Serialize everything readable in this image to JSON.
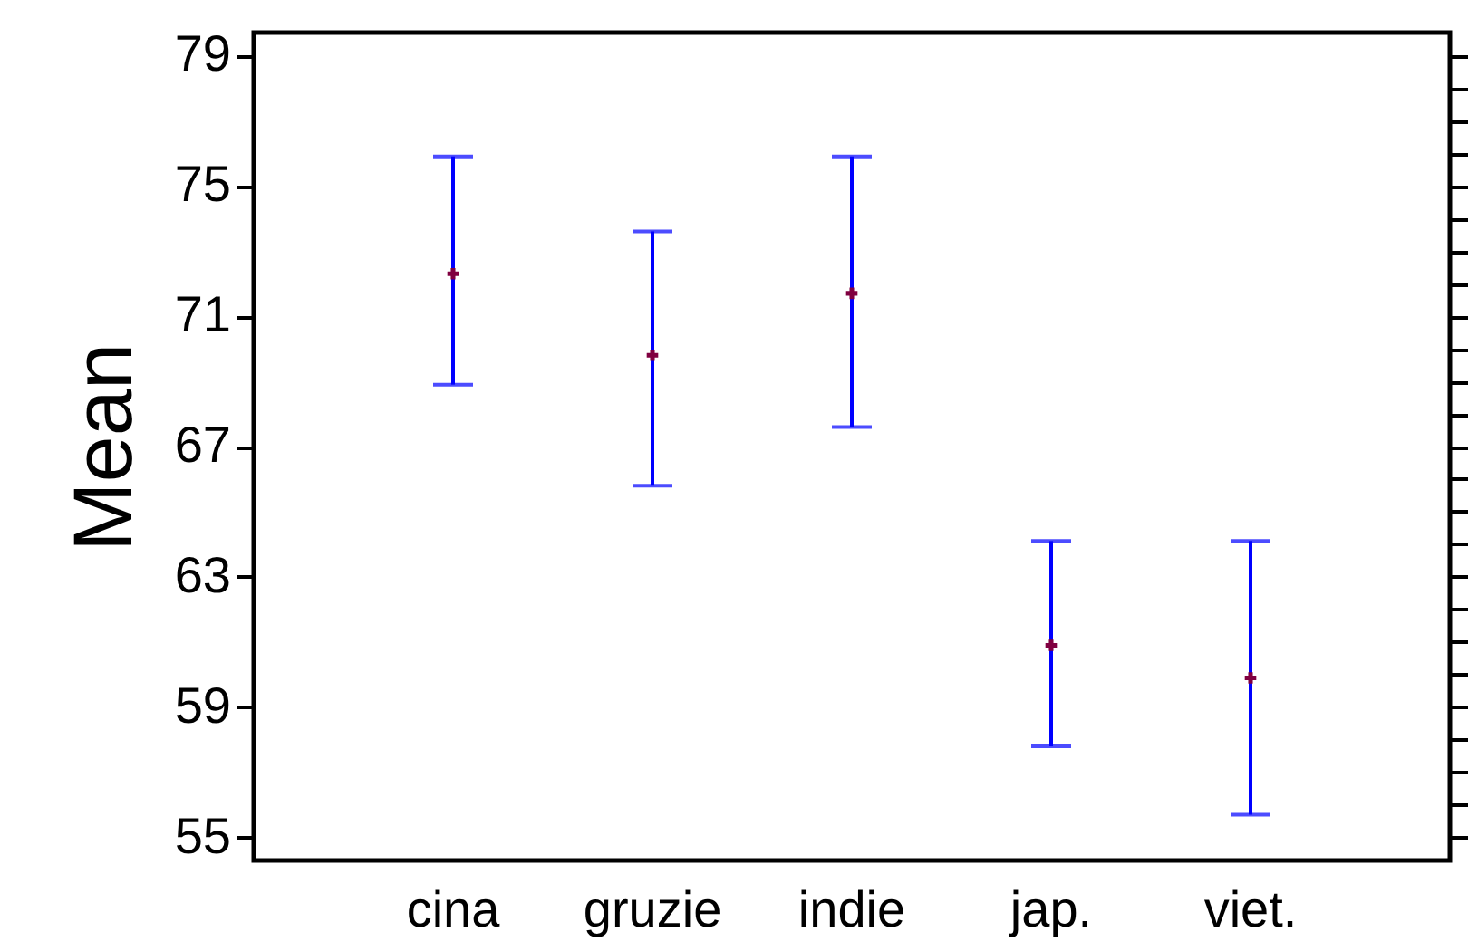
{
  "chart_data": {
    "type": "scatter",
    "ylabel": "Mean",
    "categories": [
      "cina",
      "gruzie",
      "indie",
      "jap.",
      "viet."
    ],
    "series": [
      {
        "color": "#800040",
        "values": [
          72.3,
          69.8,
          71.7,
          60.9,
          59.9
        ],
        "errors": [
          [
            68.9,
            75.9
          ],
          [
            65.8,
            73.6
          ],
          [
            67.6,
            75.9
          ],
          [
            57.8,
            64.1
          ],
          [
            55.7,
            64.1
          ]
        ]
      }
    ],
    "marker": "cross",
    "ylim": [
      54.3,
      79.7
    ],
    "yticks": [
      55,
      {
        "value": 56,
        "label": null
      },
      {
        "value": 57,
        "label": null
      },
      {
        "value": 58,
        "label": null
      },
      59,
      {
        "value": 60,
        "label": null
      },
      {
        "value": 61,
        "label": null
      },
      {
        "value": 62,
        "label": null
      },
      63,
      {
        "value": 64,
        "label": null
      },
      {
        "value": 65,
        "label": null
      },
      {
        "value": 66,
        "label": null
      },
      67,
      {
        "value": 68,
        "label": null
      },
      {
        "value": 69,
        "label": null
      },
      {
        "value": 70,
        "label": null
      },
      71,
      {
        "value": 72,
        "label": null
      },
      {
        "value": 73,
        "label": null
      },
      {
        "value": 74,
        "label": null
      },
      75,
      {
        "value": 76,
        "label": null
      },
      {
        "value": 77,
        "label": null
      },
      {
        "value": 78,
        "label": null
      },
      79
    ],
    "grid": false
  }
}
